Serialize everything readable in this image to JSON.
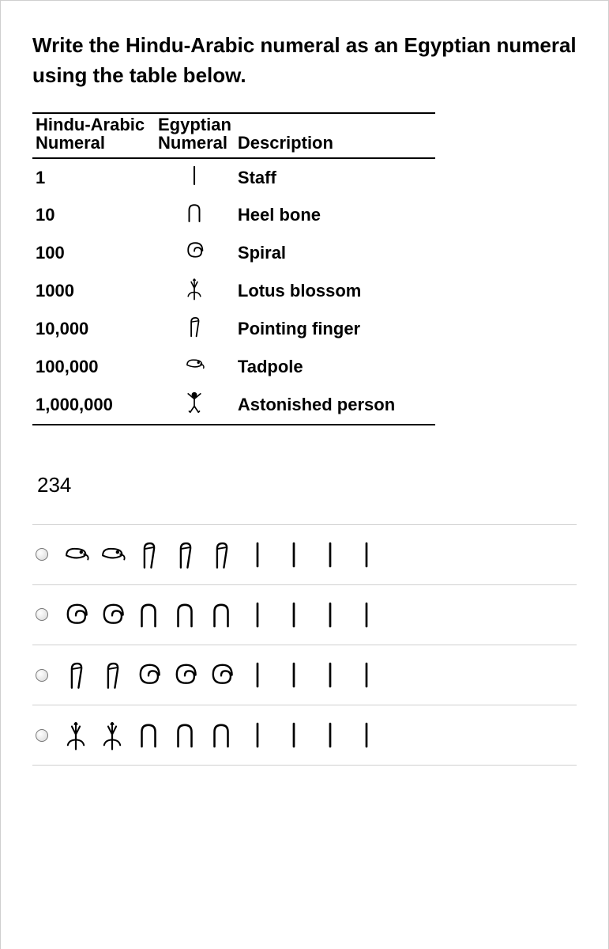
{
  "prompt": "Write the Hindu-Arabic numeral as an Egyptian numeral using the table below.",
  "table": {
    "headers": {
      "col1_line1": "Hindu-Arabic",
      "col1_line2": "Numeral",
      "col2_line1": "Egyptian",
      "col2_line2": "Numeral",
      "col3_line1": "",
      "col3_line2": "Description"
    },
    "rows": [
      {
        "num": "1",
        "glyph": "staff",
        "desc": "Staff"
      },
      {
        "num": "10",
        "glyph": "heel",
        "desc": "Heel bone"
      },
      {
        "num": "100",
        "glyph": "spiral",
        "desc": "Spiral"
      },
      {
        "num": "1000",
        "glyph": "lotus",
        "desc": "Lotus blossom"
      },
      {
        "num": "10,000",
        "glyph": "finger",
        "desc": "Pointing finger"
      },
      {
        "num": "100,000",
        "glyph": "tadpole",
        "desc": "Tadpole"
      },
      {
        "num": "1,000,000",
        "glyph": "person",
        "desc": "Astonished person"
      }
    ]
  },
  "question_value": "234",
  "options": [
    {
      "seq": [
        "tadpole",
        "tadpole",
        "finger",
        "finger",
        "finger",
        "staff",
        "staff",
        "staff",
        "staff"
      ]
    },
    {
      "seq": [
        "spiral",
        "spiral",
        "heel",
        "heel",
        "heel",
        "staff",
        "staff",
        "staff",
        "staff"
      ]
    },
    {
      "seq": [
        "finger",
        "finger",
        "spiral",
        "spiral",
        "spiral",
        "staff",
        "staff",
        "staff",
        "staff"
      ]
    },
    {
      "seq": [
        "lotus",
        "lotus",
        "heel",
        "heel",
        "heel",
        "staff",
        "staff",
        "staff",
        "staff"
      ]
    }
  ],
  "glyph_size_table": 26,
  "glyph_size_option": 34,
  "colors": {
    "stroke": "#000000",
    "fill_light": "#ffffff"
  }
}
